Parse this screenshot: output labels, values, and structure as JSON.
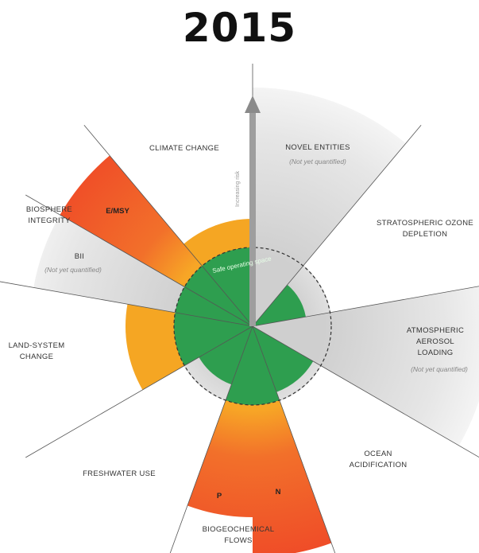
{
  "title": "2015",
  "arrow_label": "Increasing risk",
  "safe_space_label": "Safe operating space",
  "boundaries": {
    "novel_entities": {
      "label": "NOVEL ENTITIES",
      "note": "(Not yet quantified)"
    },
    "stratospheric_ozone": {
      "line1": "STRATOSPHERIC OZONE",
      "line2": "DEPLETION"
    },
    "atmospheric_aerosol": {
      "line1": "ATMOSPHERIC",
      "line2": "AEROSOL",
      "line3": "LOADING",
      "note": "(Not yet quantified)"
    },
    "ocean_acidification": {
      "line1": "OCEAN",
      "line2": "ACIDIFICATION"
    },
    "biogeochemical_flows": {
      "line1": "BIOGEOCHEMICAL",
      "line2": "FLOWS",
      "p_label": "P",
      "n_label": "N"
    },
    "freshwater_use": {
      "label": "FRESHWATER USE"
    },
    "land_system_change": {
      "line1": "LAND-SYSTEM",
      "line2": "CHANGE"
    },
    "biosphere_integrity": {
      "line1": "BIOSPHERE",
      "line2": "INTEGRITY",
      "emsy_label": "E/MSY",
      "bii_label": "BII",
      "bii_note": "(Not yet quantified)"
    },
    "climate_change": {
      "label": "CLIMATE CHANGE"
    }
  },
  "colors": {
    "safe_green": "#2e9e4f",
    "increasing_risk_orange": "#f5a623",
    "high_risk_red": "#f0502a",
    "not_quantified_grey": "#d9d9d9"
  }
}
